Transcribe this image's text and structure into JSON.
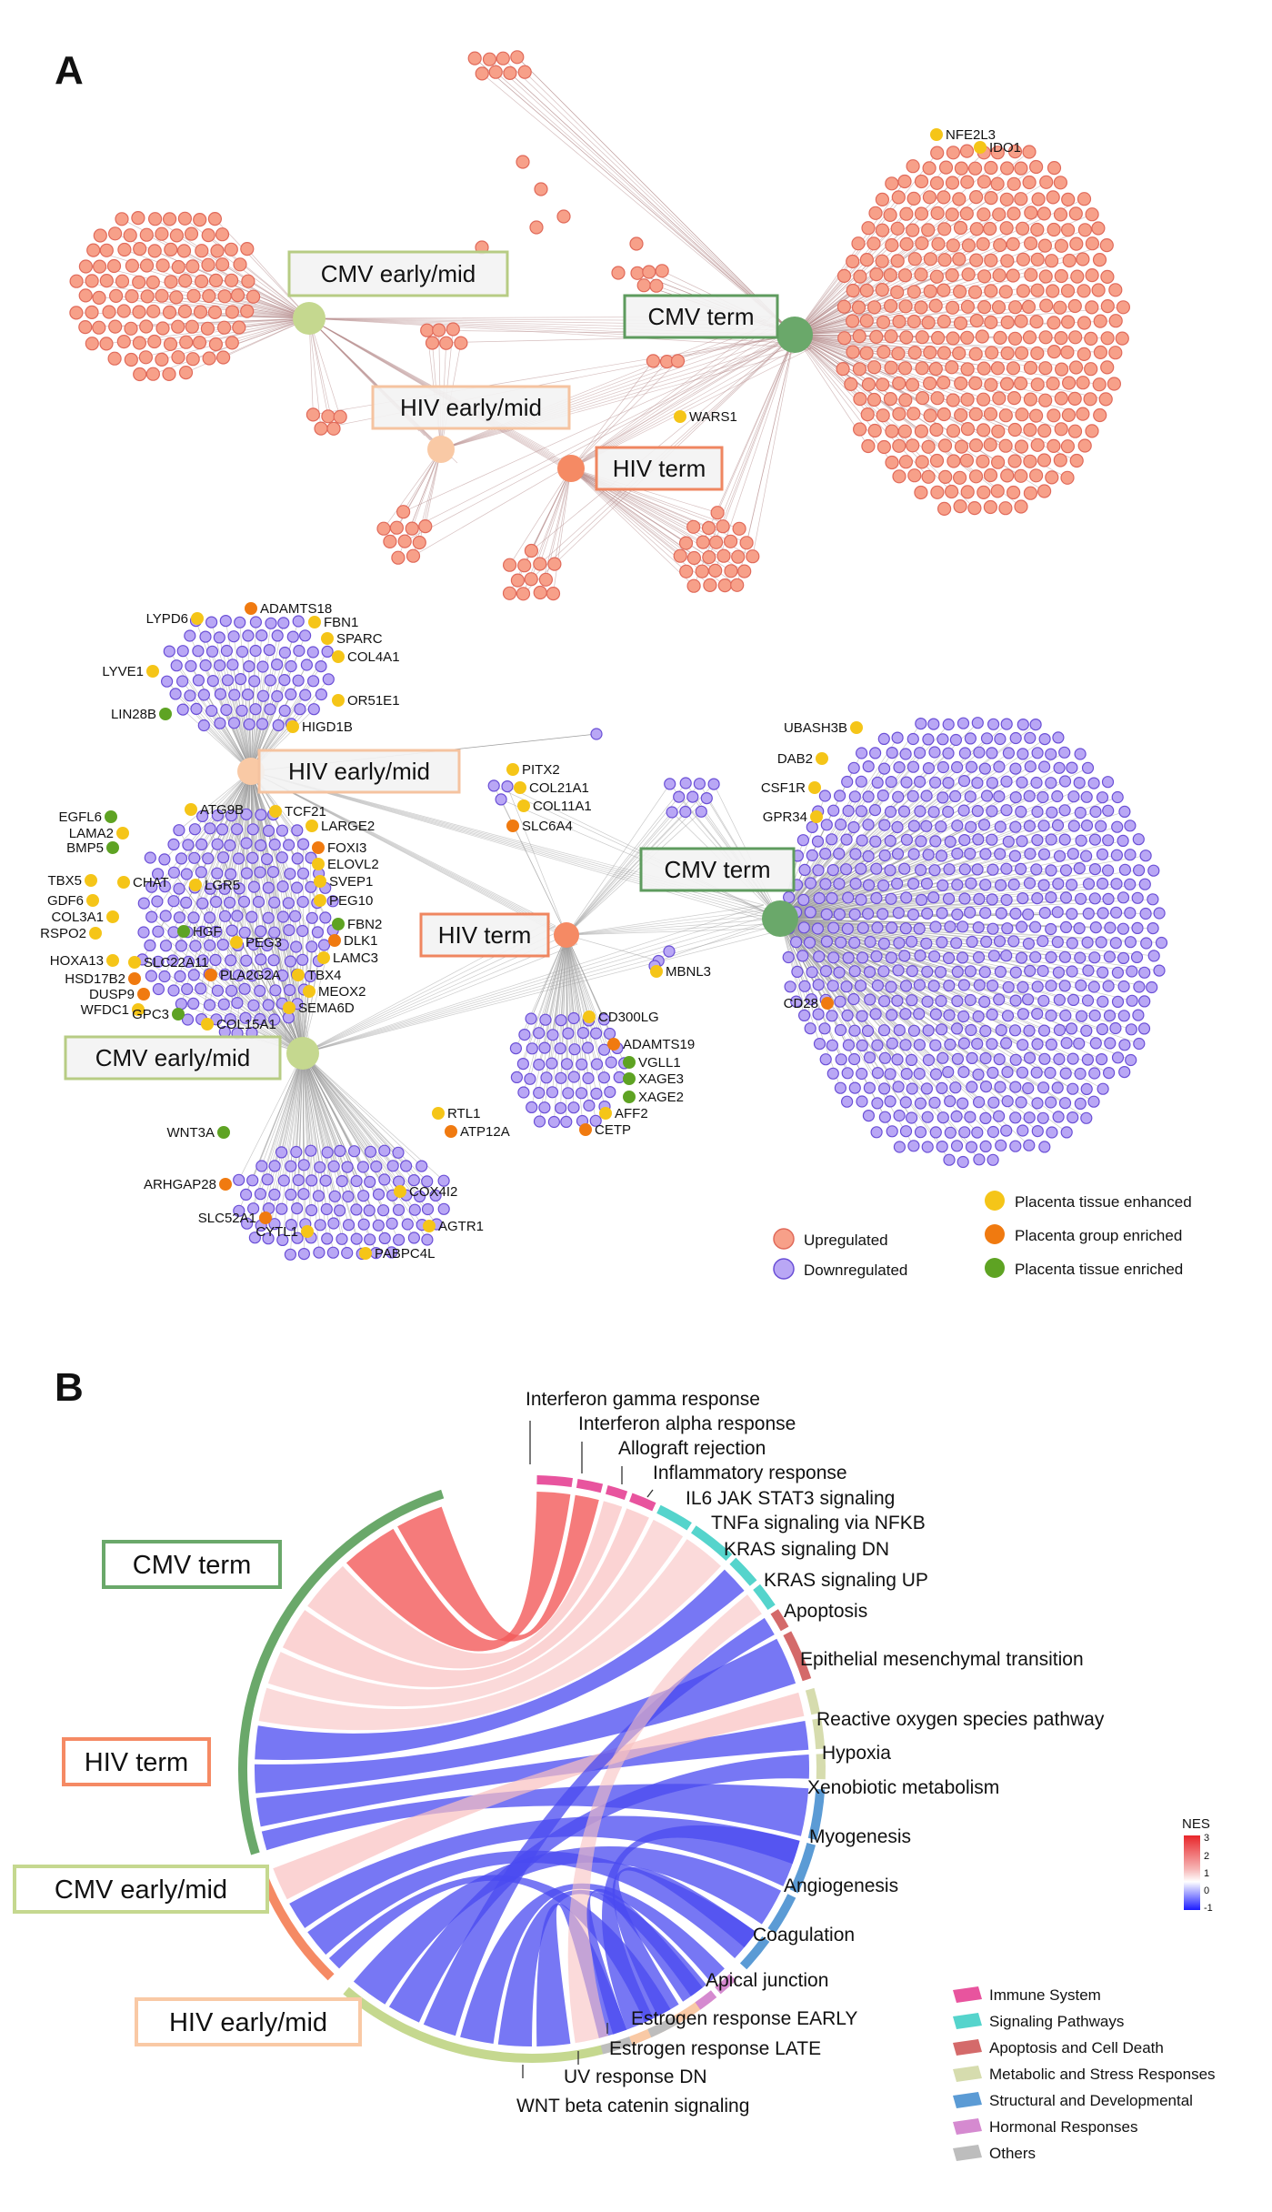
{
  "panel_a": {
    "letter": "A",
    "up_network": {
      "hubs": [
        {
          "key": "cmv_em",
          "label": "CMV early/mid",
          "color": "#c5d88f",
          "border": "#b7cc84"
        },
        {
          "key": "cmv_term",
          "label": "CMV term",
          "color": "#6aa86a",
          "border": "#5e9b5e"
        },
        {
          "key": "hiv_em",
          "label": "HIV early/mid",
          "color": "#f9c9a5",
          "border": "#f5c3a0"
        },
        {
          "key": "hiv_term",
          "label": "HIV term",
          "color": "#f58a64",
          "border": "#ef8660"
        }
      ],
      "genes": [
        "NFE2L3",
        "IDO1",
        "WARS1"
      ],
      "node_color": "#f7a089",
      "node_stroke": "#e06a5a"
    },
    "down_network": {
      "hubs": [
        {
          "key": "hiv_em",
          "label": "HIV early/mid"
        },
        {
          "key": "cmv_term",
          "label": "CMV term"
        },
        {
          "key": "hiv_term",
          "label": "HIV term"
        },
        {
          "key": "cmv_em",
          "label": "CMV early/mid"
        }
      ],
      "node_color": "#b9a7f5",
      "node_stroke": "#6a4fd6",
      "gene_groups": {
        "hiv_em_top": [
          "ADAMTS18",
          "LYPD6",
          "FBN1",
          "SPARC",
          "COL4A1",
          "LYVE1",
          "OR51E1",
          "LIN28B",
          "HIGD1B"
        ],
        "shared_left": [
          "ATG9B",
          "TCF21",
          "EGFL6",
          "LARGE2",
          "LAMA2",
          "FOXI3",
          "BMP5",
          "ELOVL2",
          "TBX5",
          "CHAT",
          "LGR5",
          "SVEP1",
          "GDF6",
          "PEG10",
          "COL3A1",
          "RSPO2",
          "HGF",
          "FBN2",
          "PEG3",
          "DLK1",
          "HOXA13",
          "SLC22A11",
          "LAMC3",
          "HSD17B2",
          "PLA2G2A",
          "TBX4",
          "DUSP9",
          "MEOX2",
          "WFDC1",
          "GPC3",
          "COL15A1",
          "SEMA6D"
        ],
        "middle": [
          "PITX2",
          "COL21A1",
          "COL11A1",
          "SLC6A4"
        ],
        "hiv_term": [
          "MBNL3",
          "CD300LG",
          "ADAMTS19",
          "VGLL1",
          "XAGE3",
          "XAGE2",
          "AFF2",
          "CETP"
        ],
        "cmv_em_bottom": [
          "RTL1",
          "ATP12A",
          "WNT3A",
          "ARHGAP28",
          "COX4I2",
          "SLC52A1",
          "AGTR1",
          "CYTL1",
          "PABPC4L"
        ],
        "cmv_term": [
          "UBASH3B",
          "DAB2",
          "CSF1R",
          "GPR34",
          "CD28"
        ]
      }
    },
    "legend": {
      "regulation": [
        {
          "label": "Upregulated",
          "color": "#f7a089"
        },
        {
          "label": "Downregulated",
          "color": "#b9a7f5"
        }
      ],
      "placenta": [
        {
          "label": "Placenta tissue enhanced",
          "color": "#f5c518"
        },
        {
          "label": "Placenta group enriched",
          "color": "#f07a10"
        },
        {
          "label": "Placenta tissue enriched",
          "color": "#5ea323"
        }
      ]
    }
  },
  "panel_b": {
    "letter": "B",
    "groups": [
      {
        "label": "CMV term",
        "color": "#6aa86a"
      },
      {
        "label": "HIV term",
        "color": "#f58a64"
      },
      {
        "label": "CMV early/mid",
        "color": "#c5d88f"
      },
      {
        "label": "HIV early/mid",
        "color": "#f9c9a5"
      }
    ],
    "pathways": [
      {
        "label": "Interferon gamma response",
        "category": 0
      },
      {
        "label": "Interferon alpha response",
        "category": 0
      },
      {
        "label": "Allograft rejection",
        "category": 0
      },
      {
        "label": "Inflammatory response",
        "category": 0
      },
      {
        "label": "IL6 JAK STAT3 signaling",
        "category": 1
      },
      {
        "label": "TNFa signaling via NFKB",
        "category": 1
      },
      {
        "label": "KRAS signaling DN",
        "category": 1
      },
      {
        "label": "KRAS signaling UP",
        "category": 1
      },
      {
        "label": "Apoptosis",
        "category": 2
      },
      {
        "label": "Epithelial mesenchymal transition",
        "category": 2
      },
      {
        "label": "Reactive oxygen species pathway",
        "category": 3
      },
      {
        "label": "Hypoxia",
        "category": 3
      },
      {
        "label": "Xenobiotic metabolism",
        "category": 3
      },
      {
        "label": "Myogenesis",
        "category": 4
      },
      {
        "label": "Angiogenesis",
        "category": 4
      },
      {
        "label": "Coagulation",
        "category": 4
      },
      {
        "label": "Apical junction",
        "category": 4
      },
      {
        "label": "Estrogen response EARLY",
        "category": 5
      },
      {
        "label": "Estrogen response LATE",
        "category": 5
      },
      {
        "label": "UV response DN",
        "category": 6
      },
      {
        "label": "WNT beta catenin signaling",
        "category": 6
      }
    ],
    "categories": [
      {
        "label": "Immune System",
        "color": "#e8549e"
      },
      {
        "label": "Signaling Pathways",
        "color": "#55d4cc"
      },
      {
        "label": "Apoptosis and Cell Death",
        "color": "#d46a6a"
      },
      {
        "label": "Metabolic and Stress Responses",
        "color": "#d6dcae"
      },
      {
        "label": "Structural and Developmental",
        "color": "#5b9bd5"
      },
      {
        "label": "Hormonal Responses",
        "color": "#d58ad0"
      },
      {
        "label": "Others",
        "color": "#bdbdbd"
      }
    ],
    "nes_legend": {
      "title": "NES",
      "ticks": [
        "3",
        "2",
        "1",
        "0",
        "-1"
      ]
    }
  }
}
